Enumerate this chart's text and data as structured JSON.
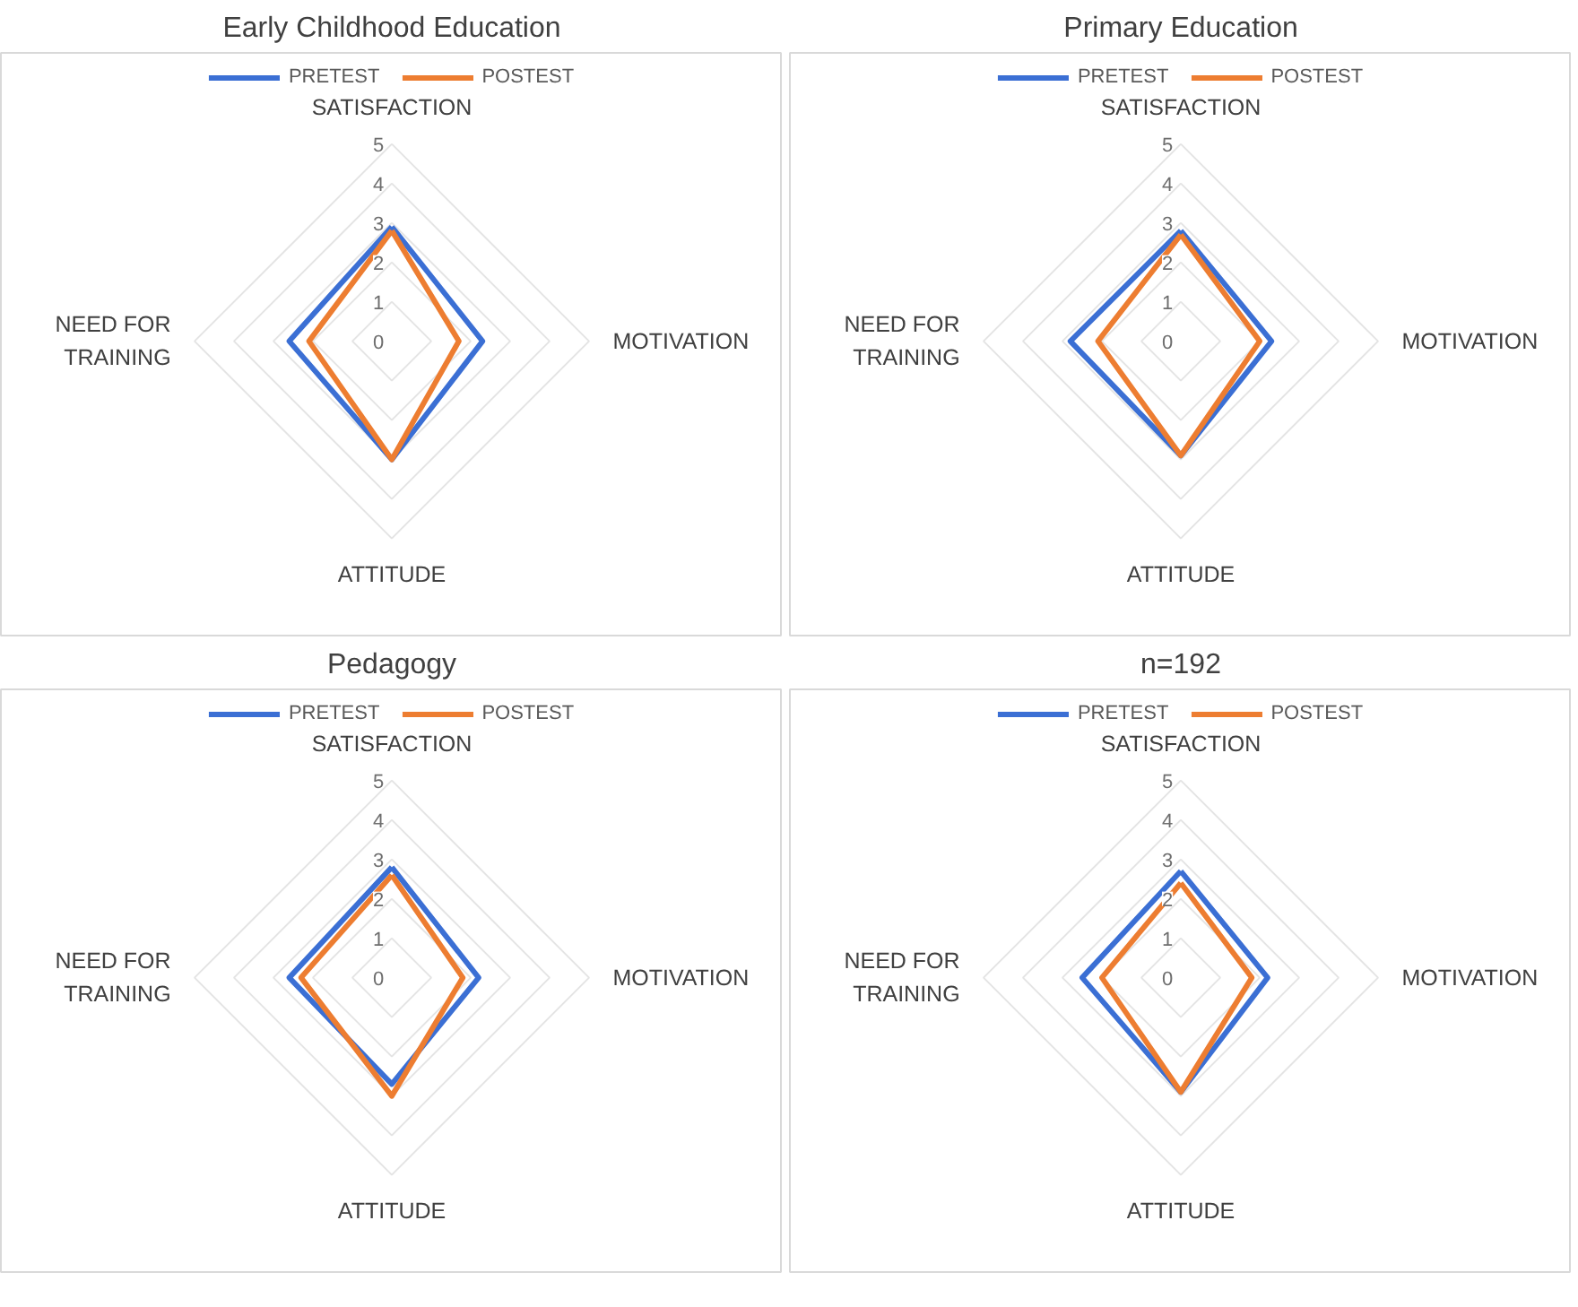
{
  "chart_data": [
    {
      "type": "radar",
      "title": "Early Childhood Education",
      "categories": [
        "SATISFACTION",
        "MOTIVATION",
        "ATTITUDE",
        "NEED FOR TRAINING"
      ],
      "ylim": [
        0,
        5
      ],
      "yticks": [
        0,
        1,
        2,
        3,
        4,
        5
      ],
      "grid": true,
      "legend": "top",
      "line_style": "solid",
      "marker": "none",
      "series": [
        {
          "name": "PRETEST",
          "color": "#3b6fd4",
          "values": [
            2.9,
            2.3,
            3.0,
            2.6
          ]
        },
        {
          "name": "POSTEST",
          "color": "#ed7d31",
          "values": [
            2.8,
            1.7,
            3.0,
            2.1
          ]
        }
      ]
    },
    {
      "type": "radar",
      "title": "Primary Education",
      "categories": [
        "SATISFACTION",
        "MOTIVATION",
        "ATTITUDE",
        "NEED FOR TRAINING"
      ],
      "ylim": [
        0,
        5
      ],
      "yticks": [
        0,
        1,
        2,
        3,
        4,
        5
      ],
      "grid": true,
      "legend": "top",
      "line_style": "solid",
      "marker": "none",
      "series": [
        {
          "name": "PRETEST",
          "color": "#3b6fd4",
          "values": [
            2.8,
            2.3,
            2.9,
            2.8
          ]
        },
        {
          "name": "POSTEST",
          "color": "#ed7d31",
          "values": [
            2.7,
            2.0,
            2.9,
            2.1
          ]
        }
      ]
    },
    {
      "type": "radar",
      "title": "Pedagogy",
      "categories": [
        "SATISFACTION",
        "MOTIVATION",
        "ATTITUDE",
        "NEED FOR TRAINING"
      ],
      "ylim": [
        0,
        5
      ],
      "yticks": [
        0,
        1,
        2,
        3,
        4,
        5
      ],
      "grid": true,
      "legend": "top",
      "line_style": "solid",
      "marker": "none",
      "series": [
        {
          "name": "PRETEST",
          "color": "#3b6fd4",
          "values": [
            2.8,
            2.2,
            2.7,
            2.6
          ]
        },
        {
          "name": "POSTEST",
          "color": "#ed7d31",
          "values": [
            2.6,
            1.8,
            3.0,
            2.3
          ]
        }
      ]
    },
    {
      "type": "radar",
      "title": "n=192",
      "categories": [
        "SATISFACTION",
        "MOTIVATION",
        "ATTITUDE",
        "NEED FOR TRAINING"
      ],
      "ylim": [
        0,
        5
      ],
      "yticks": [
        0,
        1,
        2,
        3,
        4,
        5
      ],
      "grid": true,
      "legend": "top",
      "line_style": "solid",
      "marker": "none",
      "series": [
        {
          "name": "PRETEST",
          "color": "#3b6fd4",
          "values": [
            2.7,
            2.2,
            2.9,
            2.5
          ]
        },
        {
          "name": "POSTEST",
          "color": "#ed7d31",
          "values": [
            2.4,
            1.8,
            2.9,
            2.0
          ]
        }
      ]
    }
  ]
}
